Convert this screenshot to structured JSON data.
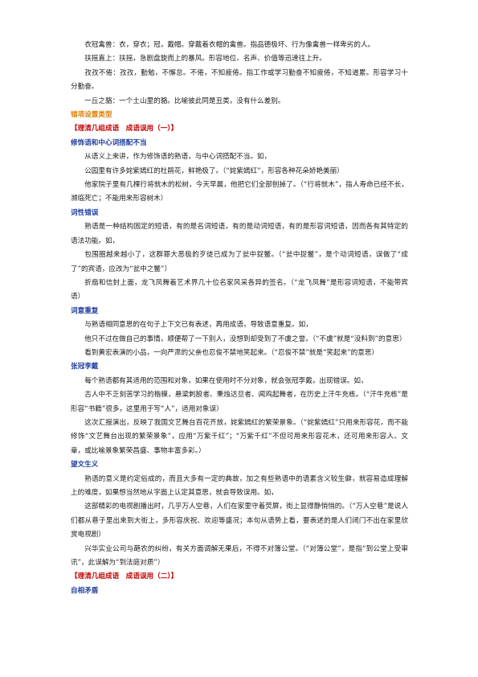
{
  "blocks": [
    {
      "type": "p",
      "text": "衣冠禽兽：衣，穿衣；冠，戴帽。穿戴着衣帽的禽兽。指品德极坏、行为像禽兽一样卑劣的人。"
    },
    {
      "type": "p",
      "text": "扶摇直上：扶摇，急剧盘旋而上的暴风。形容地位、名声、价值等迅速往上升。"
    },
    {
      "type": "p",
      "text": "孜孜不倦：孜孜，勤勉，不懈怠。不倦，不知疲倦。指工作或学习勤奋不知疲倦，不知道累。形容学习十分勤奋。"
    },
    {
      "type": "p",
      "text": "一丘之貉：一个土山里的貉。比喻彼此同是丑类，没有什么差别。"
    },
    {
      "type": "h-orange",
      "text": "错项设置类型"
    },
    {
      "type": "h-red",
      "text": "【理清几组成语　成语误用（一）】"
    },
    {
      "type": "h-blue",
      "text": "修饰语和中心词搭配不当"
    },
    {
      "type": "p",
      "text": "从语义上来讲，作为修饰语的熟语，与中心词搭配不当。如，"
    },
    {
      "type": "p",
      "text": "公园里有许多姹紫嫣红的杜鹃花，鲜艳极了。（“姹紫嫣红”，形容各种花朵娇艳美丽）"
    },
    {
      "type": "p",
      "text": "他家院子里有几棵行将就木的松树，今天早晨，他把它们全部刨掉了。（“行将就木”，指人寿命已经不长，濒临死亡；不能用来形容树木）"
    },
    {
      "type": "h-blue",
      "text": "词性错误"
    },
    {
      "type": "p",
      "text": "熟语是一种结构固定的短语，有的是名词短语，有的是动词短语，有的是形容词短语，因而各有其特定的语法功能。如，"
    },
    {
      "type": "p",
      "text": "包围圈越来越小了，这群罪大恶极的歹徒已成为了瓮中捉鳖。（“瓮中捉鳖”，是个动词短语，误做了“成了”的宾语，应改为“瓮中之鳖”）"
    },
    {
      "type": "p",
      "text": "折扇和信封上面，龙飞凤舞着艺术界几十位名家风采各异的签名。（“龙飞凤舞”是形容词短语，不能带宾语）"
    },
    {
      "type": "h-blue",
      "text": "词意重复"
    },
    {
      "type": "p",
      "text": "与熟语相同意思的在句子上下文已有表述，再用成语，导致语意重复。如，"
    },
    {
      "type": "p",
      "text": "他只不过在做自己的事情，顺便帮了一下别人，没想到却受到了不虞之誉。（“不虞”就是“没料到”的意思）"
    },
    {
      "type": "p",
      "text": "看到黄宏表演的小品，一向严肃的父亲也忍俊不禁地笑起来。（“忍俊不禁”就是“笑起来”的意思）"
    },
    {
      "type": "h-blue",
      "text": "张冠李戴"
    },
    {
      "type": "p",
      "text": "每个熟语都有其适用的范围和对象，如果在使用时不分对象，就会张冠李戴，出现错误。如，"
    },
    {
      "type": "p",
      "text": "古人中不乏刻苦学习的楷模，悬梁刺股者、秉烛达旦者、闻鸡起舞者，在历史上汗牛充栋。（“汗牛充栋”是形容“书籍”很多，这里用于写“人”，适用对象误）"
    },
    {
      "type": "p",
      "text": "这次汇报演出，反映了我国文艺舞台百花齐放，姹紫嫣红的繁荣景象。（“姹紫嫣红”只用来形容花，而不能修饰“文艺舞台出现的繁荣景象”，应用“万紫千红”；“万紫千红”不但可用来形容花木，还可用来形容人、文章，或比喻景象繁荣昌盛、事物丰富多彩。）"
    },
    {
      "type": "h-blue",
      "text": "望文生义"
    },
    {
      "type": "p",
      "text": "熟语的意义是约定俗成的，而且大多有一定的典故，加之有些熟语中的语素含义较生僻，就容易造成理解上的难度，如果想当然地从字面上认定其意思，就会导致误用。如，"
    },
    {
      "type": "p",
      "text": "这部精彩的电视剧播出时，几乎万人空巷，人们在家里守着荧屏，街上显得静悄悄的。（“万人空巷”是说人们都从巷子里出来到大街上，多形容庆祝、欢迎等盛况；本句从语势上看，要表述的是人们闭门不出在家里欣赏电视剧）"
    },
    {
      "type": "p",
      "text": "兴华实业公司与葩农的纠纷，有关方面调解无果后，不得不对簿公堂。（“对簿公堂”，是指“到公堂上受审讯”，此误解为“到法庭对质”）"
    },
    {
      "type": "h-red",
      "text": "【理清几组成语　成语误用（二）】"
    },
    {
      "type": "h-blue",
      "text": "自相矛盾"
    }
  ]
}
